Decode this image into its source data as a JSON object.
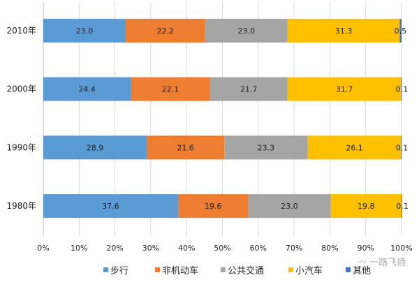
{
  "chart_data": {
    "type": "bar",
    "orientation": "horizontal",
    "stacked": "percent",
    "title": "",
    "xlabel": "",
    "ylabel": "",
    "xlim": [
      0,
      100
    ],
    "x_ticks": [
      "0%",
      "10%",
      "20%",
      "30%",
      "40%",
      "50%",
      "60%",
      "70%",
      "80%",
      "90%",
      "100%"
    ],
    "grid": true,
    "legend_position": "bottom",
    "categories": [
      "2010年",
      "2000年",
      "1990年",
      "1980年"
    ],
    "series": [
      {
        "name": "步行",
        "color": "#5b9bd5",
        "values": [
          23.0,
          24.4,
          28.9,
          37.6
        ]
      },
      {
        "name": "非机动车",
        "color": "#ed7d31",
        "values": [
          22.2,
          22.1,
          21.6,
          19.6
        ]
      },
      {
        "name": "公共交通",
        "color": "#a5a5a5",
        "values": [
          23.0,
          21.7,
          23.3,
          23.0
        ]
      },
      {
        "name": "小汽车",
        "color": "#ffc000",
        "values": [
          31.3,
          31.7,
          26.1,
          19.8
        ]
      },
      {
        "name": "其他",
        "color": "#4472c4",
        "values": [
          0.5,
          0.1,
          0.1,
          0.1
        ]
      }
    ],
    "watermark": "一路飞扬"
  }
}
